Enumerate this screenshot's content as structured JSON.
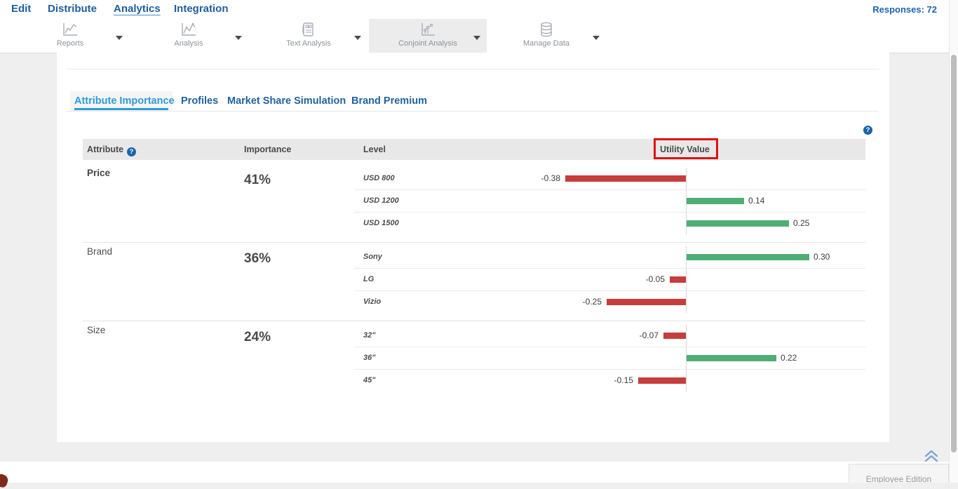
{
  "nav": {
    "items": [
      {
        "label": "Edit",
        "active": false
      },
      {
        "label": "Distribute",
        "active": false
      },
      {
        "label": "Analytics",
        "active": true
      },
      {
        "label": "Integration",
        "active": false
      }
    ],
    "responses_label": "Responses: 72"
  },
  "toolbar": {
    "items": [
      {
        "label": "Reports",
        "icon": "line-chart-icon",
        "selected": false
      },
      {
        "label": "Analysis",
        "icon": "analysis-chart-icon",
        "selected": false
      },
      {
        "label": "Text Analysis",
        "icon": "text-analysis-icon",
        "selected": false
      },
      {
        "label": "Conjoint Analysis",
        "icon": "conjoint-chart-icon",
        "selected": true
      },
      {
        "label": "Manage Data",
        "icon": "database-icon",
        "selected": false
      }
    ]
  },
  "tabs": {
    "items": [
      "Attribute Importance",
      "Profiles",
      "Market Share Simulation",
      "Brand Premium"
    ],
    "active": "Attribute Importance"
  },
  "table": {
    "headers": {
      "attribute": "Attribute",
      "importance": "Importance",
      "level": "Level",
      "utility": "Utility Value"
    },
    "help_icon": "?",
    "groups": [
      {
        "attribute": "Price",
        "importance": "41%",
        "levels": [
          {
            "label": "USD 800",
            "value": -0.38,
            "display": "-0.38"
          },
          {
            "label": "USD 1200",
            "value": 0.14,
            "display": "0.14"
          },
          {
            "label": "USD 1500",
            "value": 0.25,
            "display": "0.25"
          }
        ]
      },
      {
        "attribute": "Brand",
        "importance": "36%",
        "levels": [
          {
            "label": "Sony",
            "value": 0.3,
            "display": "0.30"
          },
          {
            "label": "LG",
            "value": -0.05,
            "display": "-0.05"
          },
          {
            "label": "Vizio",
            "value": -0.25,
            "display": "-0.25"
          }
        ]
      },
      {
        "attribute": "Size",
        "importance": "24%",
        "levels": [
          {
            "label": "32\"",
            "value": -0.07,
            "display": "-0.07"
          },
          {
            "label": "36\"",
            "value": 0.22,
            "display": "0.22"
          },
          {
            "label": "45\"",
            "value": -0.15,
            "display": "-0.15"
          }
        ]
      }
    ]
  },
  "chart_data": {
    "type": "bar",
    "orientation": "horizontal",
    "title": "Utility Value",
    "categories": [
      "USD 800",
      "USD 1200",
      "USD 1500",
      "Sony",
      "LG",
      "Vizio",
      "32\"",
      "36\"",
      "45\""
    ],
    "values": [
      -0.38,
      0.14,
      0.25,
      0.3,
      -0.05,
      -0.25,
      -0.07,
      0.22,
      -0.15
    ],
    "positive_color": "#4fae73",
    "negative_color": "#c63d3c",
    "baseline": 0
  },
  "footer": {
    "edition_label": "Employee Edition"
  },
  "colors": {
    "nav_blue": "#1f5f9e",
    "active_tab_blue": "#2f9bd7",
    "positive_bar": "#4fae73",
    "negative_bar": "#c63d3c",
    "annotation_red": "#e01212",
    "header_bg": "#e8e8e8"
  }
}
